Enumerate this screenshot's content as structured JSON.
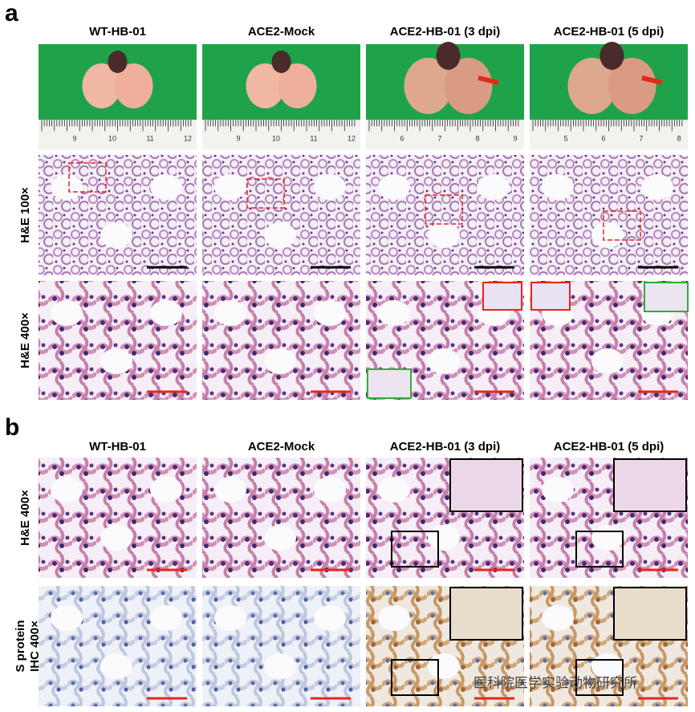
{
  "panels": [
    {
      "label": "a",
      "columns": [
        "WT-HB-01",
        "ACE2-Mock",
        "ACE2-HB-01 (3 dpi)",
        "ACE2-HB-01 (5 dpi)"
      ],
      "rulers": [
        [
          "9",
          "10",
          "11",
          "12"
        ],
        [
          "9",
          "10",
          "11",
          "12"
        ],
        [
          "6",
          "7",
          "8",
          "9"
        ],
        [
          "5",
          "6",
          "7",
          "8"
        ]
      ],
      "rows": [
        [
          "H&E 100×"
        ],
        [
          "H&E 400×"
        ]
      ]
    },
    {
      "label": "b",
      "columns": [
        "WT-HB-01",
        "ACE2-Mock",
        "ACE2-HB-01 (3 dpi)",
        "ACE2-HB-01 (5 dpi)"
      ],
      "rows": [
        [
          "H&E 400×"
        ],
        [
          "S protein",
          "IHC 400×"
        ]
      ]
    }
  ],
  "watermark": "医科院医学实验动物研究所"
}
